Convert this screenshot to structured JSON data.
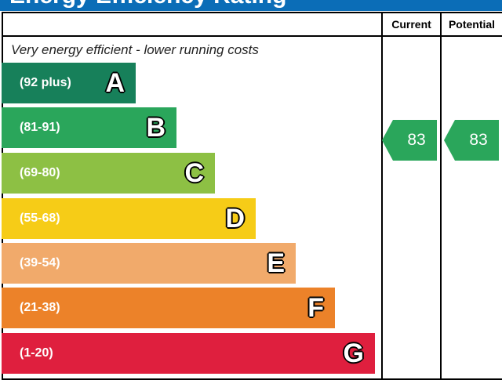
{
  "header": {
    "title": "Energy Efficiency Rating"
  },
  "chart_data": {
    "type": "bar",
    "columns": [
      "Current",
      "Potential"
    ],
    "top_note": "Very energy efficient - lower running costs",
    "bands": [
      {
        "letter": "A",
        "range": "(92 plus)",
        "color": "#17805a"
      },
      {
        "letter": "B",
        "range": "(81-91)",
        "color": "#2aa65b"
      },
      {
        "letter": "C",
        "range": "(69-80)",
        "color": "#8dc044"
      },
      {
        "letter": "D",
        "range": "(55-68)",
        "color": "#f6cc17"
      },
      {
        "letter": "E",
        "range": "(39-54)",
        "color": "#f1aa6b"
      },
      {
        "letter": "F",
        "range": "(21-38)",
        "color": "#ec8229"
      },
      {
        "letter": "G",
        "range": "(1-20)",
        "color": "#df1f3e"
      }
    ],
    "current": {
      "value": "83",
      "band": "B"
    },
    "potential": {
      "value": "83",
      "band": "B"
    }
  }
}
